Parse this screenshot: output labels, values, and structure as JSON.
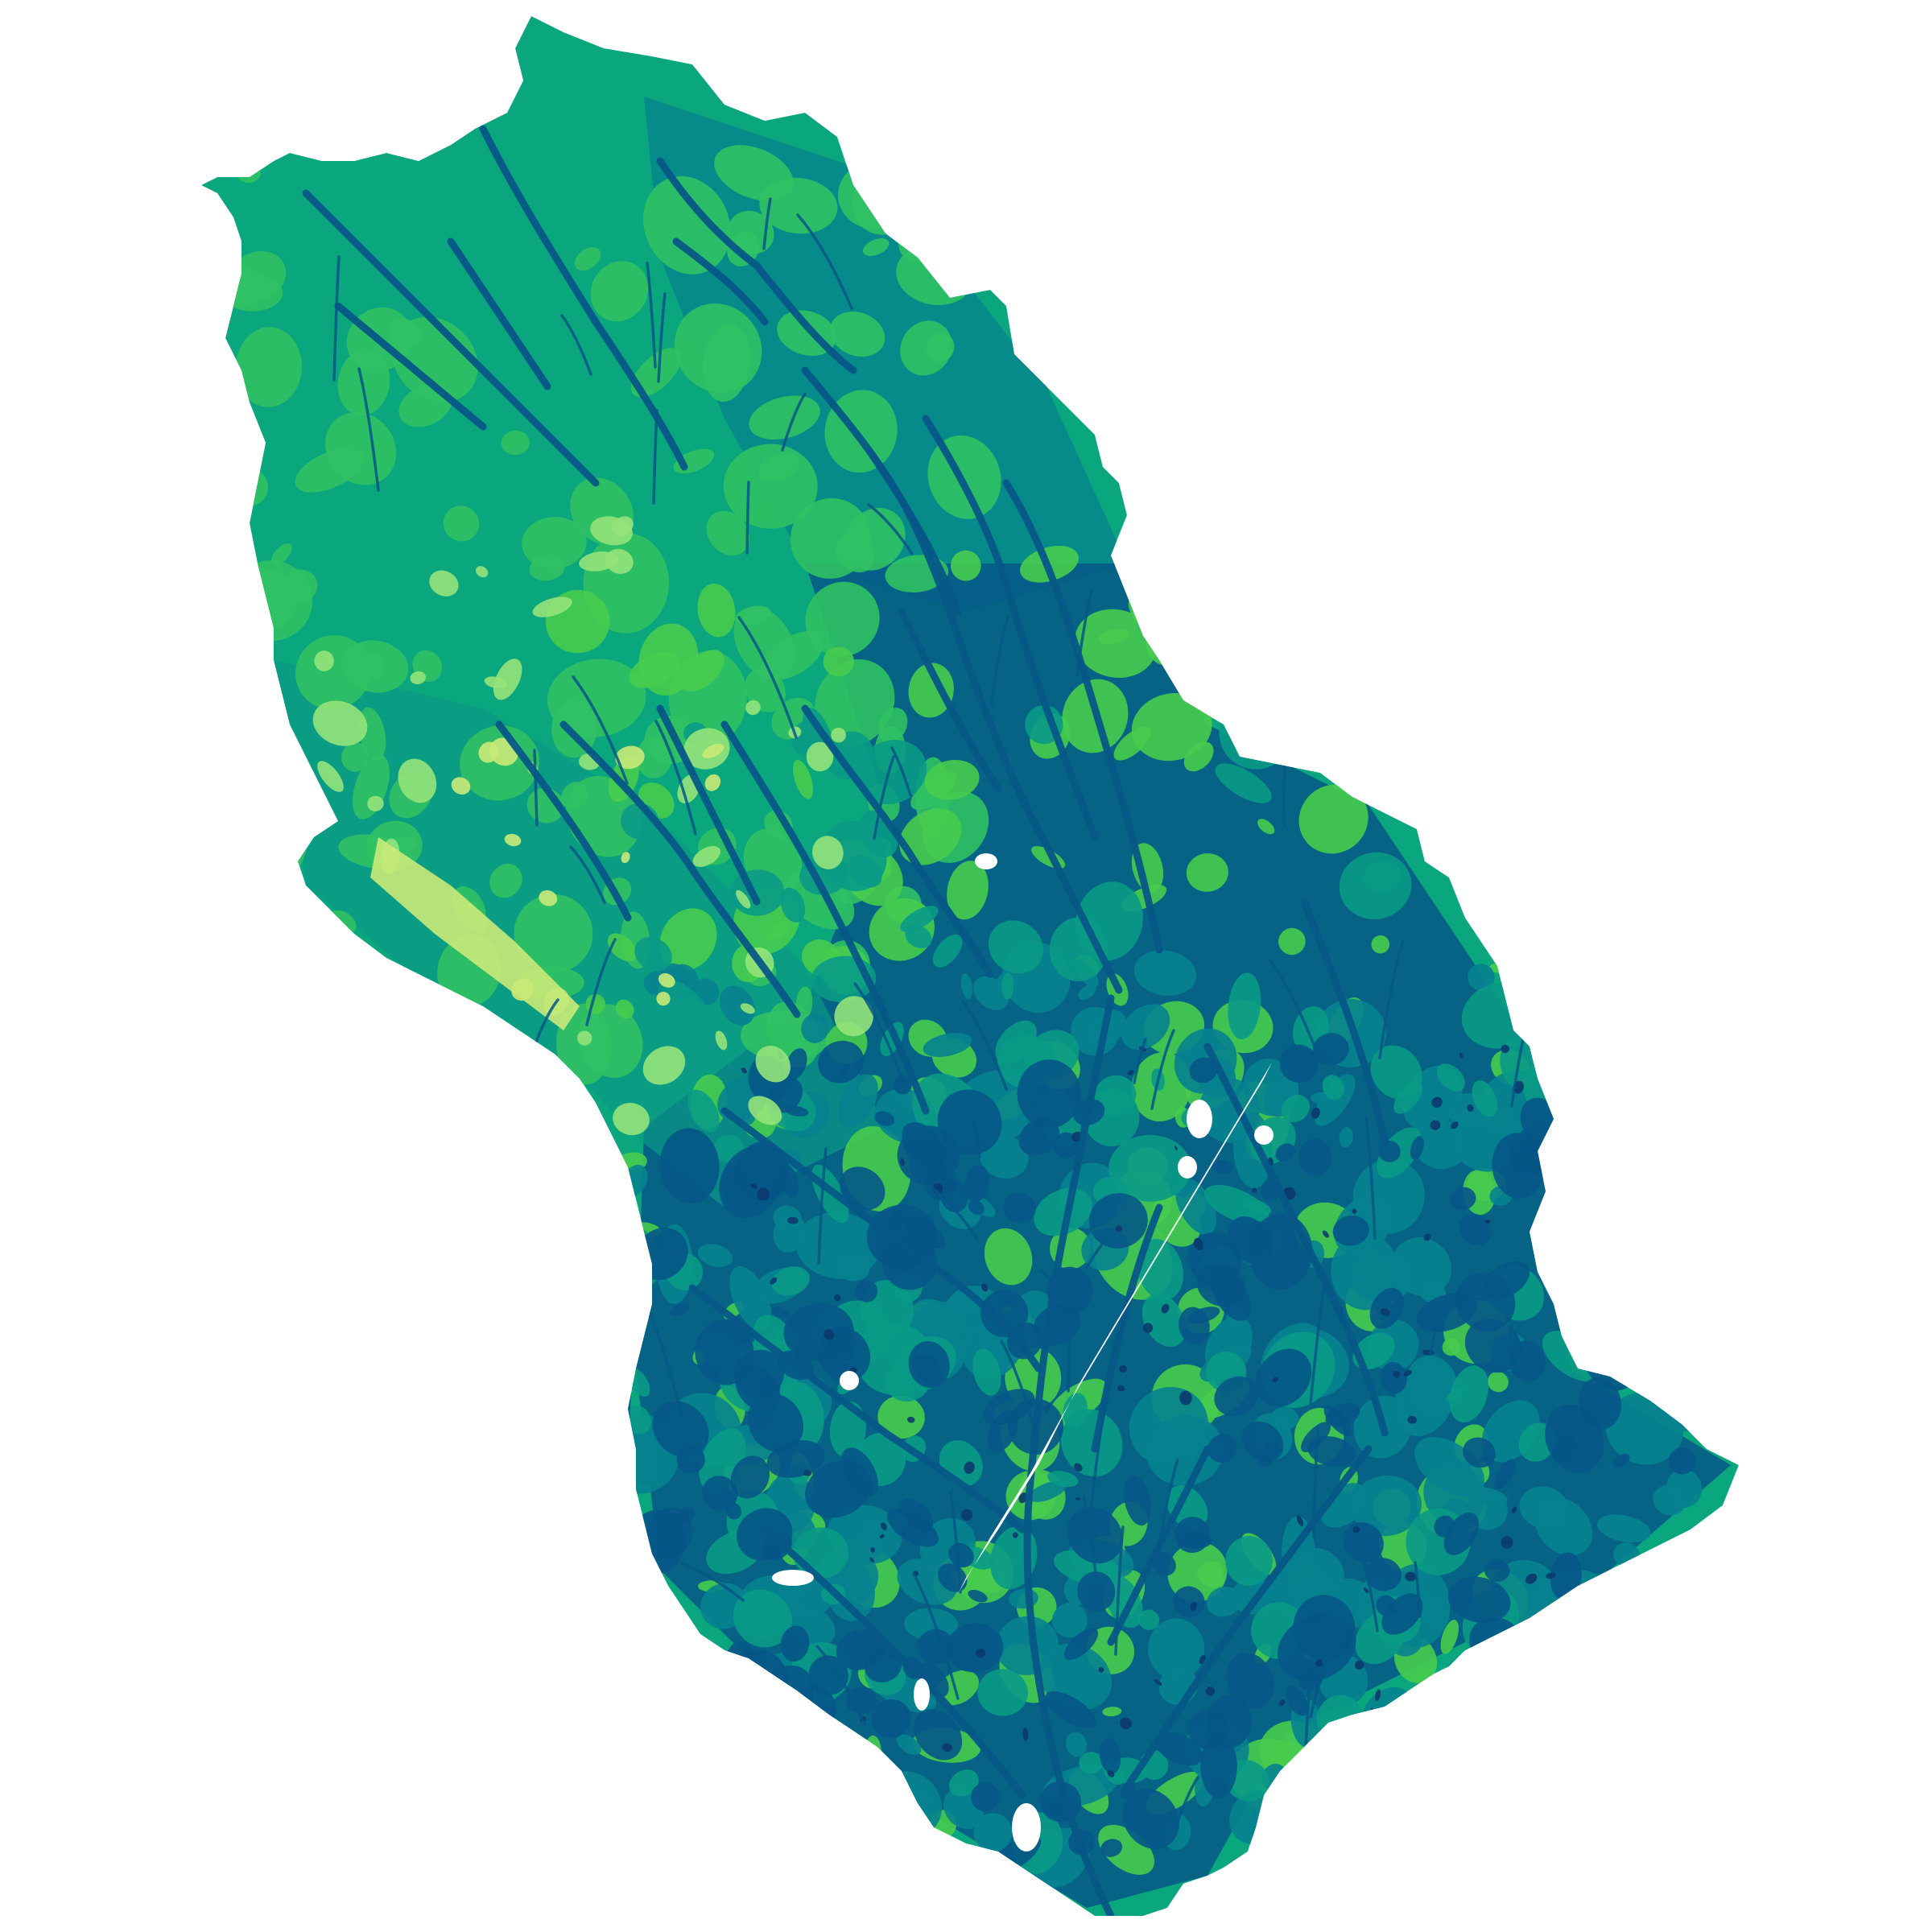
{
  "map": {
    "type": "categorical-raster-choropleth",
    "legend": null,
    "labels": [],
    "background_color": "#ffffff",
    "palette": {
      "class_1_darkest": "#0b3a6e",
      "class_2_dark_blue": "#065787",
      "class_3_teal": "#07828f",
      "class_4_green_teal": "#0a9a86",
      "class_5_dominant_green": "#0aa67e",
      "class_6_green": "#30c163",
      "class_7_bright_green": "#47cc4e",
      "class_8_light_green": "#95e37a",
      "class_9_pale_yellow_green": "#c9ea78"
    },
    "nodata_color": "#ffffff"
  }
}
